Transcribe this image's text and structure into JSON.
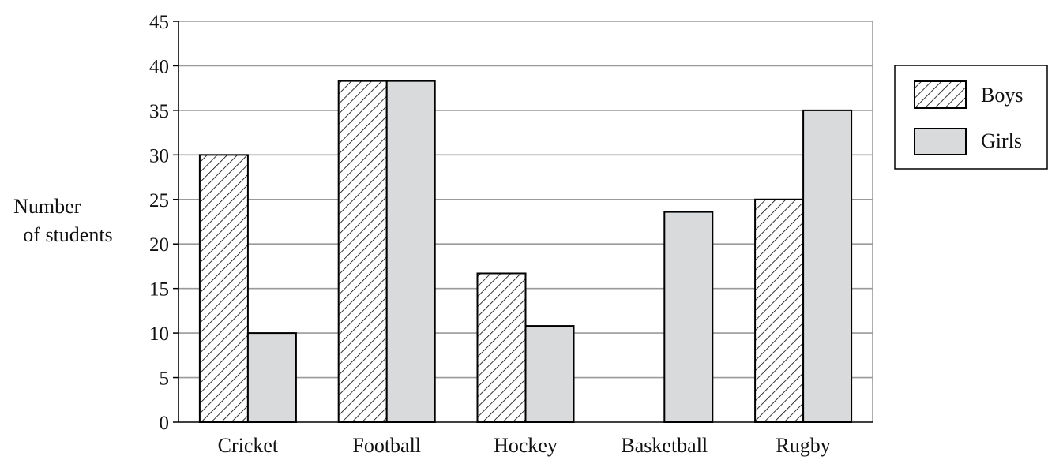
{
  "chart_data": {
    "type": "bar",
    "title": "",
    "xlabel": "",
    "ylabel": [
      "Number",
      "of students"
    ],
    "categories": [
      "Cricket",
      "Football",
      "Hockey",
      "Basketball",
      "Rugby"
    ],
    "series": [
      {
        "name": "Boys",
        "values": [
          30,
          38.3,
          16.7,
          0,
          25
        ],
        "fill": "hatch"
      },
      {
        "name": "Girls",
        "values": [
          10,
          38.3,
          10.8,
          23.6,
          35
        ],
        "fill": "#d9dadb"
      }
    ],
    "ylim": [
      0,
      45
    ],
    "yticks": [
      0,
      5,
      10,
      15,
      20,
      25,
      30,
      35,
      40,
      45
    ],
    "grid": true,
    "legend_position": "right",
    "colors": {
      "grid": "#9a9a9a",
      "bar_edge": "#000000",
      "girls_fill": "#d9dadb",
      "boys_fill": "#ffffff"
    }
  }
}
